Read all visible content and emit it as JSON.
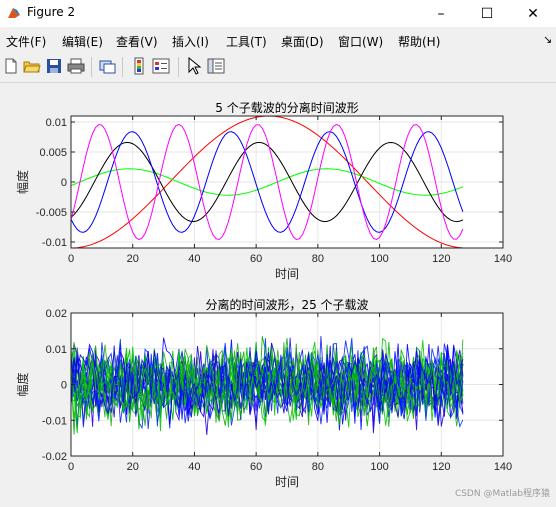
{
  "window": {
    "title": "Figure 2",
    "minimize": "–",
    "maximize": "☐",
    "close": "✕"
  },
  "menu": [
    "文件(F)",
    "编辑(E)",
    "查看(V)",
    "插入(I)",
    "工具(T)",
    "桌面(D)",
    "窗口(W)",
    "帮助(H)"
  ],
  "toolbar": [
    "new-figure-icon",
    "open-file-icon",
    "save-icon",
    "print-icon",
    "link-plot-icon",
    "colorbar-icon",
    "legend-icon",
    "pointer-icon",
    "property-editor-icon"
  ],
  "watermark": "CSDN @Matlab程序猿",
  "chart_data": [
    {
      "type": "line",
      "title": "5 个子载波的分离时间波形",
      "xlabel": "时间",
      "ylabel": "幅度",
      "xlim": [
        0,
        140
      ],
      "ylim": [
        -0.011,
        0.011
      ],
      "xticks": [
        0,
        20,
        40,
        60,
        80,
        100,
        120,
        140
      ],
      "yticks": [
        -0.01,
        -0.005,
        0,
        0.005,
        0.01
      ],
      "ytick_labels": [
        "-0.01",
        "-0.005",
        "0",
        "0.005",
        "0.01"
      ],
      "grid": true,
      "samples": 128,
      "series": [
        {
          "color": "#ff0000",
          "amplitude": 0.011,
          "period": 128,
          "phase": 3.14
        },
        {
          "color": "#00ff00",
          "amplitude": 0.0022,
          "period": 64,
          "phase": -1.85
        },
        {
          "color": "#000000",
          "amplitude": 0.0066,
          "period": 42.7,
          "phase": 3.6
        },
        {
          "color": "#0000ff",
          "amplitude": 0.0084,
          "period": 32,
          "phase": 2.4
        },
        {
          "color": "#ff00ff",
          "amplitude": 0.0096,
          "period": 25.6,
          "phase": 4.0
        }
      ]
    },
    {
      "type": "line",
      "title": "分离的时间波形，25 个子载波",
      "xlabel": "时间",
      "ylabel": "幅度",
      "xlim": [
        0,
        140
      ],
      "ylim": [
        -0.02,
        0.02
      ],
      "xticks": [
        0,
        20,
        40,
        60,
        80,
        100,
        120,
        140
      ],
      "yticks": [
        -0.02,
        -0.01,
        0,
        0.01,
        0.02
      ],
      "ytick_labels": [
        "-0.02",
        "-0.01",
        "0",
        "0.01",
        "0.02"
      ],
      "grid": true,
      "samples": 128,
      "series_colors": [
        "#00b000",
        "#22aa22",
        "#00cc00",
        "#0000ff",
        "#1020ee",
        "#0030ff",
        "#2000dd"
      ],
      "series_count": 25,
      "amplitude_range": [
        -0.015,
        0.015
      ]
    }
  ]
}
